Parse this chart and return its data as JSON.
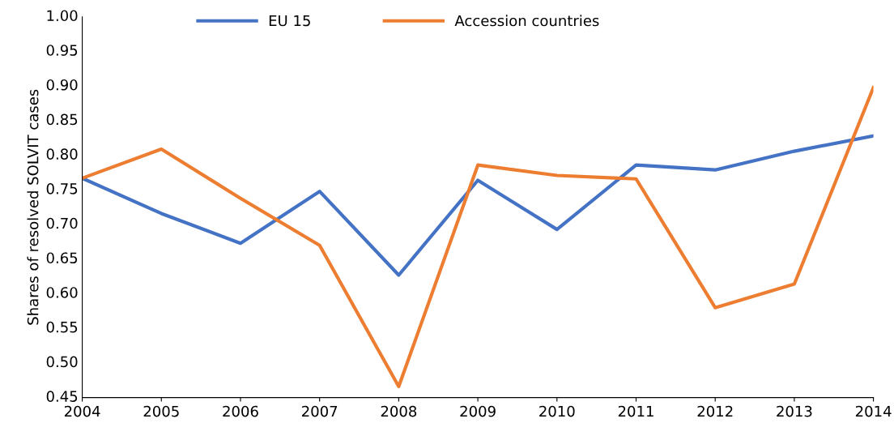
{
  "chart_data": {
    "type": "line",
    "ylabel": "Shares of resolved SOLVIT cases",
    "x": [
      2004,
      2005,
      2006,
      2007,
      2008,
      2009,
      2010,
      2011,
      2012,
      2013,
      2014
    ],
    "series": [
      {
        "name": "EU 15",
        "color": "#4472c4",
        "values": [
          0.767,
          0.716,
          0.673,
          0.748,
          0.627,
          0.764,
          0.693,
          0.786,
          0.779,
          0.806,
          0.828
        ]
      },
      {
        "name": "Accession countries",
        "color": "#ed7d31",
        "values": [
          0.767,
          0.809,
          0.738,
          0.67,
          0.466,
          0.786,
          0.771,
          0.766,
          0.58,
          0.614,
          0.898
        ]
      }
    ],
    "xlim": [
      2004,
      2014
    ],
    "xticks": [
      2004,
      2005,
      2006,
      2007,
      2008,
      2009,
      2010,
      2011,
      2012,
      2013,
      2014
    ],
    "ylim": [
      0.45,
      1.0
    ],
    "yticks": [
      {
        "value": 0.45,
        "label": "0.45"
      },
      {
        "value": 0.5,
        "label": "0.50"
      },
      {
        "value": 0.55,
        "label": "0.55"
      },
      {
        "value": 0.6,
        "label": "0.60"
      },
      {
        "value": 0.65,
        "label": "0.65"
      },
      {
        "value": 0.7,
        "label": "0.70"
      },
      {
        "value": 0.75,
        "label": "0.75"
      },
      {
        "value": 0.8,
        "label": "0.80"
      },
      {
        "value": 0.85,
        "label": "0.85"
      },
      {
        "value": 0.9,
        "label": "0.90"
      },
      {
        "value": 0.95,
        "label": "0.95"
      },
      {
        "value": 1.0,
        "label": "1.00"
      }
    ],
    "grid": false,
    "legend": "top",
    "marker": "none",
    "line_style": "solid"
  }
}
